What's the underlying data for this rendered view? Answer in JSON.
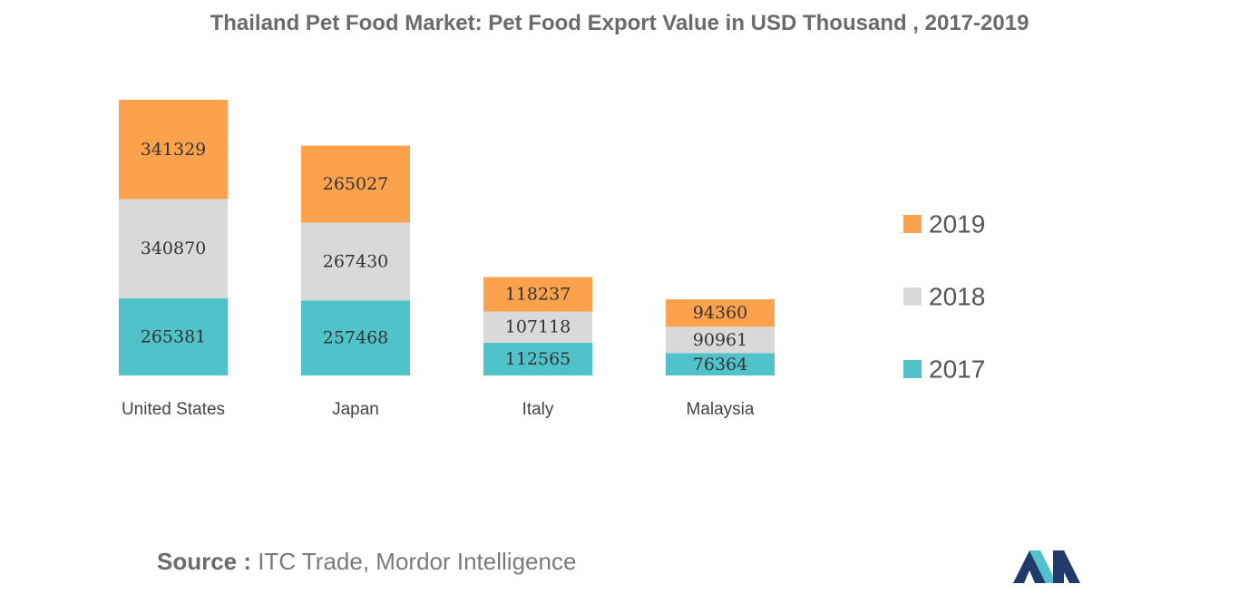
{
  "chart_data": {
    "type": "bar",
    "stacked": true,
    "title": "Thailand Pet Food Market: Pet Food Export Value in USD Thousand , 2017-2019",
    "xlabel": "",
    "ylabel": "",
    "grid": false,
    "legend_position": "right",
    "categories": [
      "United States",
      "Japan",
      "Italy",
      "Malaysia"
    ],
    "series": [
      {
        "name": "2017",
        "color": "#4fc3c9",
        "values": [
          265381,
          257468,
          112565,
          76364
        ]
      },
      {
        "name": "2018",
        "color": "#d9d9d9",
        "values": [
          340870,
          267430,
          107118,
          90961
        ]
      },
      {
        "name": "2019",
        "color": "#fca24d",
        "values": [
          341329,
          265027,
          118237,
          94360
        ]
      }
    ]
  },
  "source": {
    "label": "Source :",
    "text": " ITC Trade, Mordor Intelligence"
  },
  "logo": {
    "icon": "mordor-intelligence-logo",
    "colors": [
      "#1f3a6b",
      "#4fc3c9"
    ]
  }
}
